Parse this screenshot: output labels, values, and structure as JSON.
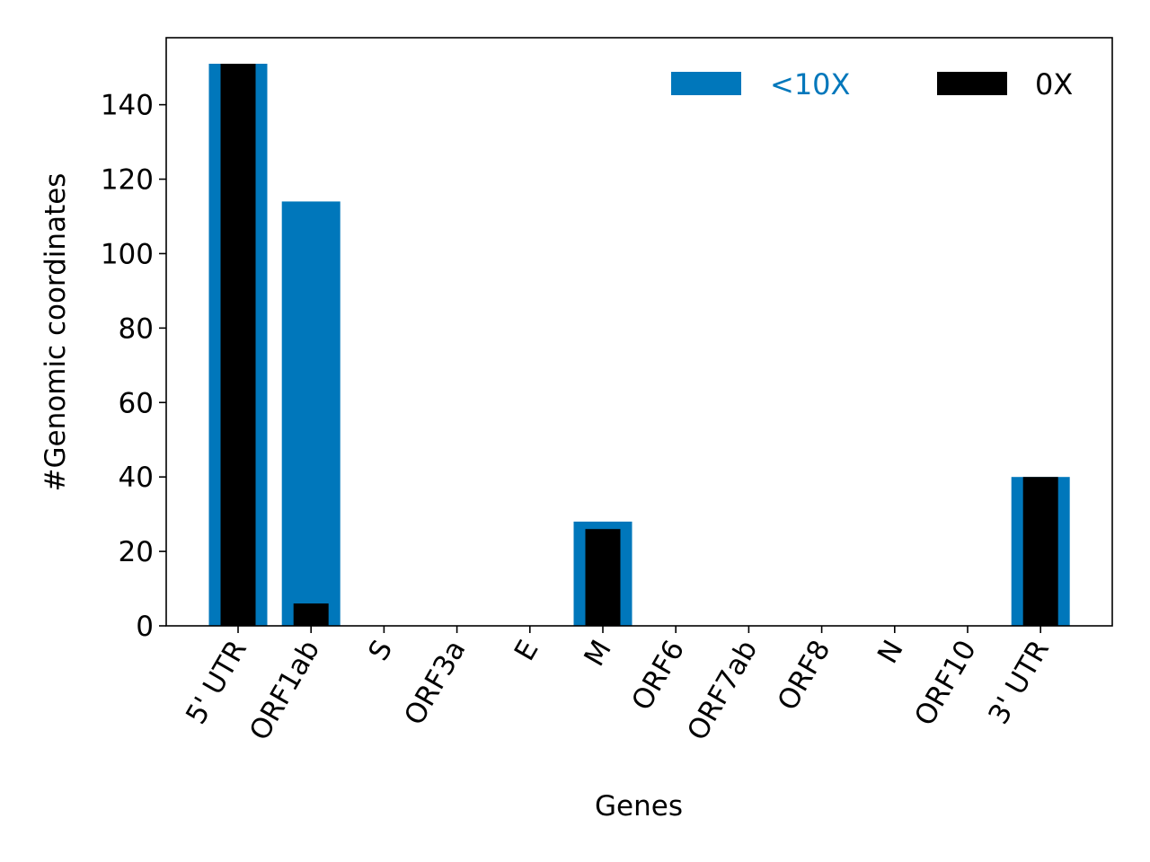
{
  "chart_data": {
    "type": "bar",
    "title": "",
    "xlabel": "Genes",
    "ylabel": "#Genomic coordinates",
    "categories": [
      "5' UTR",
      "ORF1ab",
      "S",
      "ORF3a",
      "E",
      "M",
      "ORF6",
      "ORF7ab",
      "ORF8",
      "N",
      "ORF10",
      "3' UTR"
    ],
    "series": [
      {
        "name": "<10X",
        "color": "#0077bb",
        "values": [
          151,
          114,
          0,
          0,
          0,
          28,
          0,
          0,
          0,
          0,
          0,
          40
        ]
      },
      {
        "name": "0X",
        "color": "#000000",
        "values": [
          151,
          6,
          0,
          0,
          0,
          26,
          0,
          0,
          0,
          0,
          0,
          40
        ]
      }
    ],
    "ylim": [
      0,
      158
    ],
    "yticks": [
      0,
      20,
      40,
      60,
      80,
      100,
      120,
      140
    ],
    "grid": false,
    "legend_position": "top-right",
    "xtick_rotation": 60
  }
}
